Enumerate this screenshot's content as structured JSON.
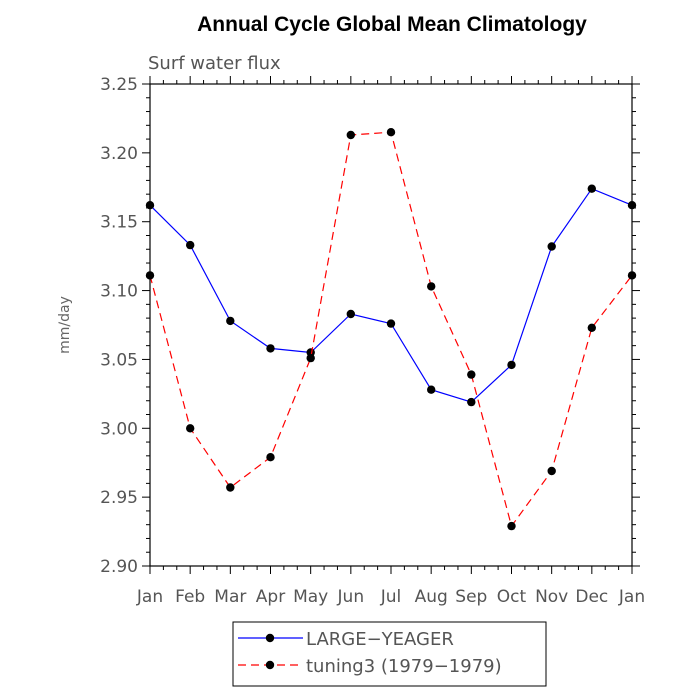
{
  "chart_data": {
    "type": "line",
    "title": "Annual Cycle Global Mean Climatology",
    "subtitle": "Surf water flux",
    "xlabel": "",
    "ylabel": "mm/day",
    "ylim": [
      2.9,
      3.25
    ],
    "y_ticks": [
      "2.90",
      "2.95",
      "3.00",
      "3.05",
      "3.10",
      "3.15",
      "3.20",
      "3.25"
    ],
    "categories": [
      "Jan",
      "Feb",
      "Mar",
      "Apr",
      "May",
      "Jun",
      "Jul",
      "Aug",
      "Sep",
      "Oct",
      "Nov",
      "Dec",
      "Jan"
    ],
    "grid": false,
    "legend_position": "bottom",
    "series": [
      {
        "name": "LARGE−YEAGER",
        "color": "#0000ff",
        "line_style": "solid",
        "marker": "circle",
        "values": [
          3.162,
          3.133,
          3.078,
          3.058,
          3.055,
          3.083,
          3.076,
          3.028,
          3.019,
          3.046,
          3.132,
          3.174,
          3.162
        ]
      },
      {
        "name": "tuning3 (1979−1979)",
        "color": "#ff0000",
        "line_style": "dashed",
        "marker": "circle",
        "values": [
          3.111,
          3.0,
          2.957,
          2.979,
          3.051,
          3.213,
          3.215,
          3.103,
          3.039,
          2.929,
          2.969,
          3.073,
          3.111
        ]
      }
    ]
  }
}
